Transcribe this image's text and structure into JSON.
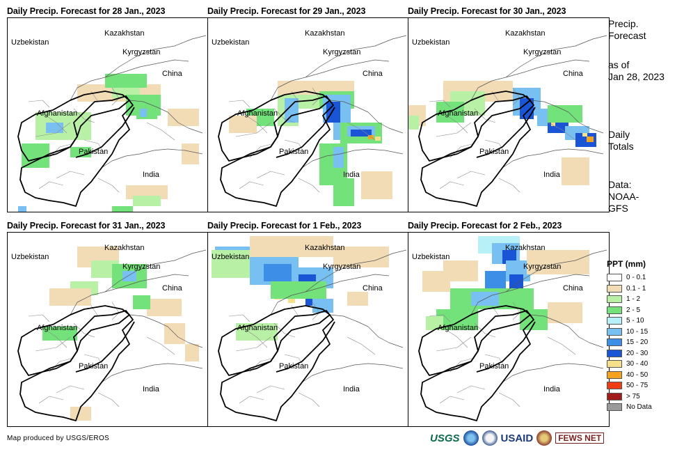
{
  "panels": [
    {
      "title": "Daily Precip. Forecast for 28 Jan., 2023",
      "precip_pattern": "northeast-afghanistan-and-kashmir-moderate"
    },
    {
      "title": "Daily Precip. Forecast for 29 Jan., 2023",
      "precip_pattern": "kashmir-and-northern-india-heavy"
    },
    {
      "title": "Daily Precip. Forecast for 30 Jan., 2023",
      "precip_pattern": "himalaya-band-heavy"
    },
    {
      "title": "Daily Precip. Forecast for 31 Jan., 2023",
      "precip_pattern": "northeast-light"
    },
    {
      "title": "Daily Precip. Forecast for 1 Feb., 2023",
      "precip_pattern": "uzbekistan-tajikistan-heavy"
    },
    {
      "title": "Daily Precip. Forecast for 2 Feb., 2023",
      "precip_pattern": "kazakhstan-kyrgyzstan-heavy"
    }
  ],
  "map_labels": {
    "kazakhstan": "Kazakhstan",
    "uzbekistan": "Uzbekistan",
    "kyrgyzstan": "Kyrgyzstan",
    "china": "China",
    "afghanistan": "Afghanistan",
    "pakistan": "Pakistan",
    "india": "India"
  },
  "sidebar": {
    "title_line1": "Precip.",
    "title_line2": "Forecast",
    "asof_line1": "as of",
    "asof_line2": "Jan 28, 2023",
    "totals_line1": "Daily",
    "totals_line2": "Totals",
    "data_line1": "Data:",
    "data_line2": "NOAA-",
    "data_line3": "GFS"
  },
  "legend": {
    "title": "PPT (mm)",
    "items": [
      {
        "label": "0 - 0.1",
        "color": "#ffffff"
      },
      {
        "label": "0.1 - 1",
        "color": "#f2dcb5"
      },
      {
        "label": "1 - 2",
        "color": "#b8f0a6"
      },
      {
        "label": "2 - 5",
        "color": "#74e27a"
      },
      {
        "label": "5 - 10",
        "color": "#b8f0f8"
      },
      {
        "label": "10 - 15",
        "color": "#78bff2"
      },
      {
        "label": "15 - 20",
        "color": "#3d8ee6"
      },
      {
        "label": "20 - 30",
        "color": "#1a55d6"
      },
      {
        "label": "30 - 40",
        "color": "#f6e08a"
      },
      {
        "label": "40 - 50",
        "color": "#f5a21e"
      },
      {
        "label": "50 - 75",
        "color": "#f03c12"
      },
      {
        "label": "> 75",
        "color": "#a31c1c"
      },
      {
        "label": "No Data",
        "color": "#9a9a9a"
      }
    ]
  },
  "footer": {
    "credit": "Map produced by USGS/EROS",
    "logos": [
      "USGS",
      "NOAA",
      "USAID",
      "FEWS NET"
    ]
  }
}
